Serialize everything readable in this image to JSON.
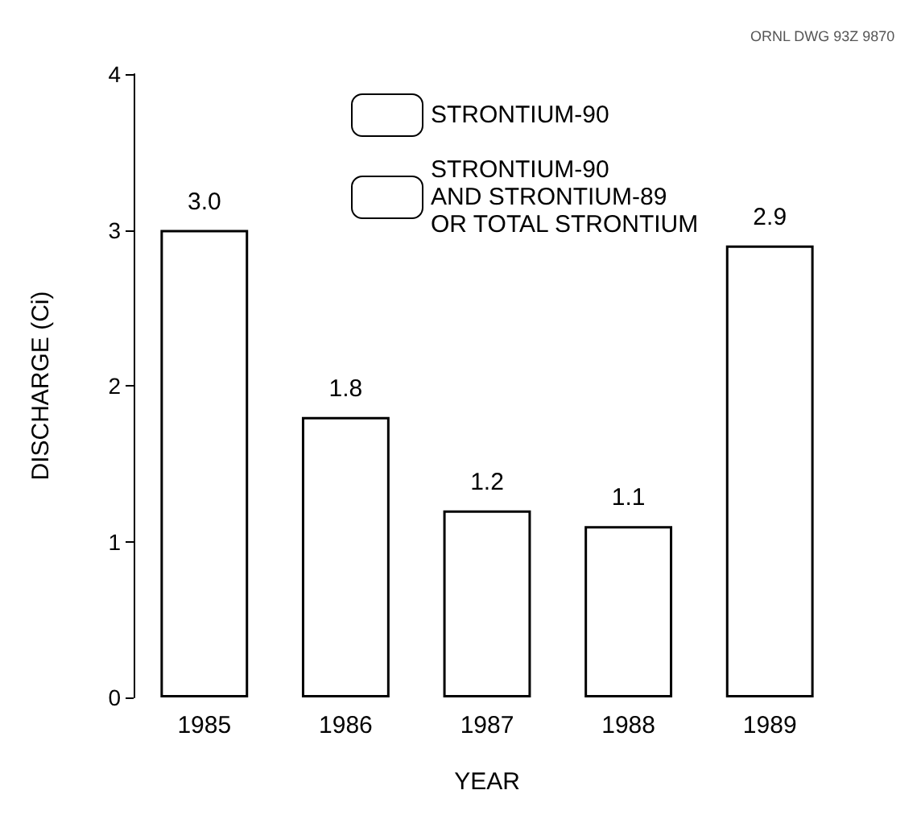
{
  "chart_data": {
    "type": "bar",
    "xlabel": "YEAR",
    "ylabel": "DISCHARGE (Ci)",
    "categories": [
      "1985",
      "1986",
      "1987",
      "1988",
      "1989"
    ],
    "series": [
      {
        "name": "STRONTIUM-90",
        "color": "#ffffff",
        "values": [
          3.0,
          1.8,
          1.2,
          1.1,
          null
        ],
        "value_labels": [
          "3.0",
          "1.8",
          "1.2",
          "1.1",
          null
        ]
      },
      {
        "name": "STRONTIUM-90\nAND STRONTIUM-89\nOR TOTAL STRONTIUM",
        "color": "#ffffff",
        "values": [
          null,
          null,
          null,
          null,
          2.9
        ],
        "value_labels": [
          null,
          null,
          null,
          null,
          "2.9"
        ]
      }
    ],
    "ylim": [
      0,
      4
    ],
    "yticks": [
      0,
      1,
      2,
      3,
      4
    ],
    "grid": false,
    "legend": "top",
    "annotations": [
      "ORNL DWG 93Z 9870"
    ]
  }
}
